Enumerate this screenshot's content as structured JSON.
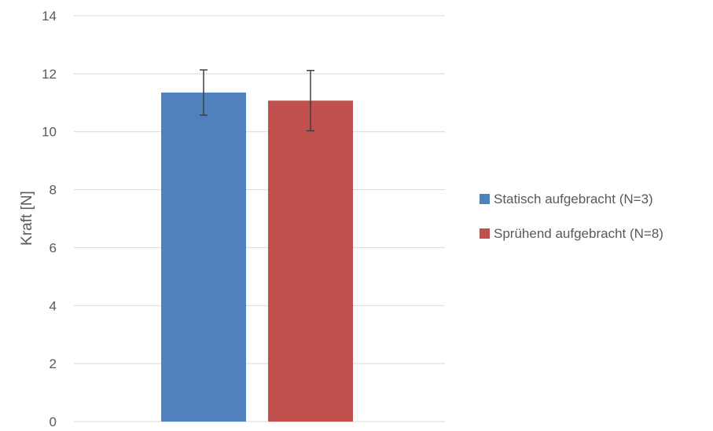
{
  "chart_data": {
    "type": "bar",
    "categories": [
      ""
    ],
    "series": [
      {
        "name": "Statisch aufgebracht (N=3)",
        "values": [
          11.35
        ],
        "error": [
          0.78
        ],
        "color": "#4f81bd"
      },
      {
        "name": "Sprühend aufgebracht (N=8)",
        "values": [
          11.07
        ],
        "error": [
          1.04
        ],
        "color": "#c0504d"
      }
    ],
    "title": "",
    "xlabel": "",
    "ylabel": "Kraft [N]",
    "ylim": [
      0,
      14
    ],
    "yticks": [
      0,
      2,
      4,
      6,
      8,
      10,
      12,
      14
    ],
    "ytick_labels": [
      "0",
      "2",
      "4",
      "6",
      "8",
      "10",
      "12",
      "14"
    ],
    "grid": true,
    "legend_position": "right"
  }
}
